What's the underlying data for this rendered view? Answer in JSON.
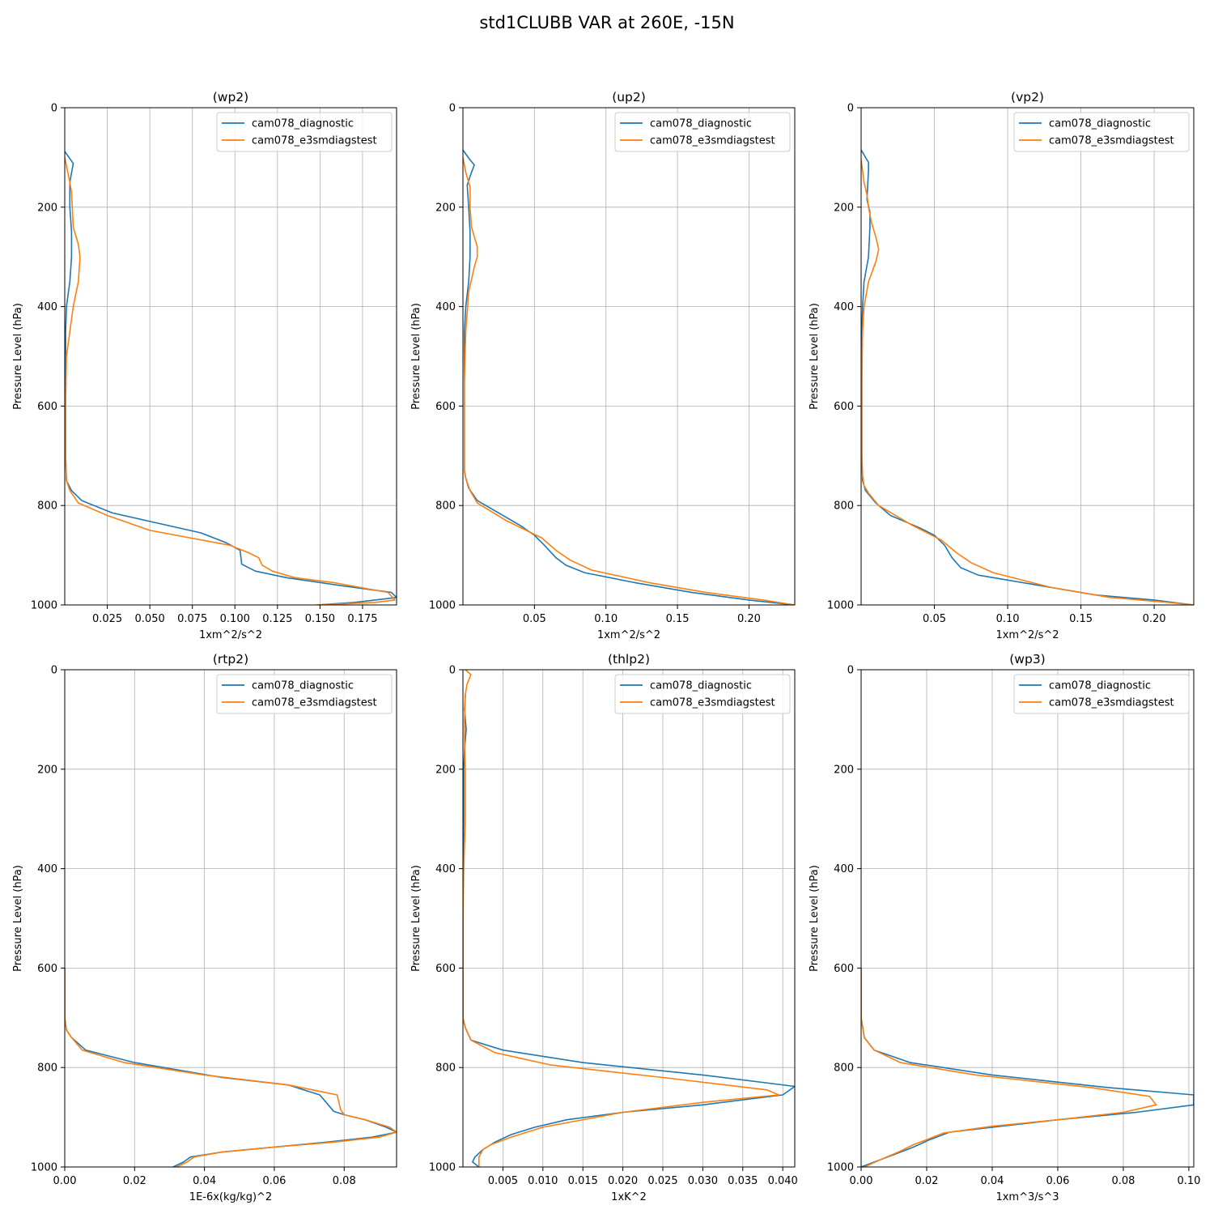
{
  "figure": {
    "title": "std1CLUBB VAR at 260E, -15N"
  },
  "colors": {
    "diagnostic": "#1f77b4",
    "e3smdiagstest": "#ff7f0e",
    "grid": "#b0b0b0"
  },
  "chart_data": [
    {
      "type": "line",
      "title": "(wp2)",
      "xlabel": "1xm^2/s^2",
      "ylabel": "Pressure Level (hPa)",
      "xlim": [
        0,
        0.195
      ],
      "ylim": [
        1000,
        0
      ],
      "xticks": [
        0.025,
        0.05,
        0.075,
        0.1,
        0.125,
        0.15,
        0.175
      ],
      "xtick_labels": [
        "0.025",
        "0.050",
        "0.075",
        "0.100",
        "0.125",
        "0.150",
        "0.175"
      ],
      "yticks": [
        0,
        200,
        400,
        600,
        800,
        1000
      ],
      "ytick_labels": [
        "0",
        "200",
        "400",
        "600",
        "800",
        "1000"
      ],
      "grid": true,
      "legend": "upper-right",
      "series": [
        {
          "name": "cam078_diagnostic",
          "color": "#1f77b4",
          "x": [
            0.0,
            0.005,
            0.003,
            0.003,
            0.004,
            0.004,
            0.003,
            0.001,
            0.0005,
            0.0005,
            0.0005,
            0.001,
            0.004,
            0.01,
            0.028,
            0.08,
            0.095,
            0.103,
            0.104,
            0.112,
            0.13,
            0.16,
            0.192,
            0.195,
            0.17,
            0.148
          ],
          "y": [
            88,
            112,
            150,
            200,
            250,
            300,
            350,
            400,
            450,
            600,
            700,
            750,
            770,
            790,
            815,
            855,
            875,
            890,
            918,
            932,
            945,
            960,
            975,
            985,
            995,
            1000
          ]
        },
        {
          "name": "cam078_e3smdiagstest",
          "color": "#ff7f0e",
          "x": [
            0.0,
            0.003,
            0.004,
            0.005,
            0.008,
            0.009,
            0.008,
            0.005,
            0.003,
            0.001,
            0.0005,
            0.0005,
            0.001,
            0.003,
            0.008,
            0.025,
            0.05,
            0.097,
            0.108,
            0.114,
            0.116,
            0.122,
            0.135,
            0.158,
            0.19,
            0.194,
            0.182,
            0.148
          ],
          "y": [
            100,
            150,
            170,
            240,
            275,
            300,
            350,
            400,
            450,
            500,
            600,
            700,
            750,
            770,
            795,
            820,
            850,
            880,
            895,
            905,
            920,
            932,
            945,
            955,
            975,
            990,
            995,
            1000
          ]
        }
      ]
    },
    {
      "type": "line",
      "title": "(up2)",
      "xlabel": "1xm^2/s^2",
      "ylabel": "Pressure Level (hPa)",
      "xlim": [
        0,
        0.232
      ],
      "ylim": [
        1000,
        0
      ],
      "xticks": [
        0.05,
        0.1,
        0.15,
        0.2
      ],
      "xtick_labels": [
        "0.05",
        "0.10",
        "0.15",
        "0.20"
      ],
      "yticks": [
        0,
        200,
        400,
        600,
        800,
        1000
      ],
      "ytick_labels": [
        "0",
        "200",
        "400",
        "600",
        "800",
        "1000"
      ],
      "grid": true,
      "legend": "upper-right",
      "series": [
        {
          "name": "cam078_diagnostic",
          "color": "#1f77b4",
          "x": [
            0.0,
            0.005,
            0.008,
            0.006,
            0.003,
            0.004,
            0.005,
            0.005,
            0.004,
            0.002,
            0.001,
            0.001,
            0.001,
            0.001,
            0.002,
            0.004,
            0.01,
            0.025,
            0.04,
            0.05,
            0.057,
            0.065,
            0.072,
            0.085,
            0.12,
            0.16,
            0.2,
            0.232
          ],
          "y": [
            85,
            105,
            115,
            130,
            155,
            200,
            250,
            300,
            350,
            400,
            450,
            600,
            700,
            730,
            745,
            765,
            790,
            815,
            840,
            860,
            880,
            905,
            920,
            935,
            955,
            975,
            990,
            1000
          ]
        },
        {
          "name": "cam078_e3smdiagstest",
          "color": "#ff7f0e",
          "x": [
            0.0,
            0.002,
            0.005,
            0.005,
            0.006,
            0.008,
            0.01,
            0.01,
            0.008,
            0.004,
            0.002,
            0.001,
            0.001,
            0.001,
            0.001,
            0.002,
            0.005,
            0.01,
            0.03,
            0.055,
            0.065,
            0.075,
            0.09,
            0.13,
            0.17,
            0.21,
            0.232
          ],
          "y": [
            100,
            130,
            160,
            200,
            240,
            260,
            280,
            300,
            320,
            370,
            450,
            550,
            650,
            700,
            730,
            745,
            770,
            795,
            830,
            865,
            890,
            910,
            930,
            955,
            975,
            990,
            1000
          ]
        }
      ]
    },
    {
      "type": "line",
      "title": "(vp2)",
      "xlabel": "1xm^2/s^2",
      "ylabel": "Pressure Level (hPa)",
      "xlim": [
        0,
        0.227
      ],
      "ylim": [
        1000,
        0
      ],
      "xticks": [
        0.05,
        0.1,
        0.15,
        0.2
      ],
      "xtick_labels": [
        "0.05",
        "0.10",
        "0.15",
        "0.20"
      ],
      "yticks": [
        0,
        200,
        400,
        600,
        800,
        1000
      ],
      "ytick_labels": [
        "0",
        "200",
        "400",
        "600",
        "800",
        "1000"
      ],
      "grid": true,
      "legend": "upper-right",
      "series": [
        {
          "name": "cam078_diagnostic",
          "color": "#1f77b4",
          "x": [
            0.0,
            0.005,
            0.005,
            0.004,
            0.006,
            0.006,
            0.005,
            0.002,
            0.001,
            0.0005,
            0.0005,
            0.0005,
            0.001,
            0.003,
            0.01,
            0.02,
            0.04,
            0.05,
            0.057,
            0.062,
            0.068,
            0.08,
            0.12,
            0.16,
            0.2,
            0.227
          ],
          "y": [
            85,
            110,
            125,
            185,
            210,
            240,
            300,
            350,
            400,
            450,
            600,
            700,
            750,
            770,
            795,
            820,
            845,
            860,
            880,
            905,
            925,
            940,
            960,
            980,
            990,
            1000
          ]
        },
        {
          "name": "cam078_e3smdiagstest",
          "color": "#ff7f0e",
          "x": [
            0.0,
            0.002,
            0.004,
            0.005,
            0.007,
            0.01,
            0.012,
            0.01,
            0.005,
            0.002,
            0.001,
            0.0005,
            0.0005,
            0.001,
            0.002,
            0.005,
            0.012,
            0.035,
            0.055,
            0.065,
            0.075,
            0.09,
            0.13,
            0.17,
            0.21,
            0.227
          ],
          "y": [
            105,
            150,
            175,
            200,
            230,
            260,
            285,
            310,
            350,
            400,
            450,
            550,
            700,
            740,
            760,
            775,
            800,
            840,
            870,
            895,
            915,
            935,
            965,
            985,
            995,
            1000
          ]
        }
      ]
    },
    {
      "type": "line",
      "title": "(rtp2)",
      "xlabel": "1E-6x(kg/kg)^2",
      "ylabel": "Pressure Level (hPa)",
      "xlim": [
        0,
        0.095
      ],
      "ylim": [
        1000,
        0
      ],
      "xticks": [
        0,
        0.02,
        0.04,
        0.06,
        0.08
      ],
      "xtick_labels": [
        "0.00",
        "0.02",
        "0.04",
        "0.06",
        "0.08"
      ],
      "yticks": [
        0,
        200,
        400,
        600,
        800,
        1000
      ],
      "ytick_labels": [
        "0",
        "200",
        "400",
        "600",
        "800",
        "1000"
      ],
      "grid": true,
      "legend": "upper-right",
      "series": [
        {
          "name": "cam078_diagnostic",
          "color": "#1f77b4",
          "x": [
            0.0,
            0.0,
            0.0005,
            0.002,
            0.006,
            0.02,
            0.045,
            0.064,
            0.073,
            0.077,
            0.08,
            0.086,
            0.092,
            0.095,
            0.088,
            0.075,
            0.06,
            0.045,
            0.036,
            0.034,
            0.031
          ],
          "y": [
            600,
            700,
            725,
            740,
            765,
            790,
            820,
            835,
            855,
            888,
            895,
            905,
            920,
            930,
            940,
            950,
            960,
            970,
            980,
            990,
            1000
          ]
        },
        {
          "name": "cam078_e3smdiagstest",
          "color": "#ff7f0e",
          "x": [
            0.0,
            0.0,
            0.0005,
            0.002,
            0.005,
            0.017,
            0.04,
            0.064,
            0.078,
            0.079,
            0.08,
            0.086,
            0.093,
            0.095,
            0.09,
            0.077,
            0.06,
            0.045,
            0.037,
            0.035,
            0.032
          ],
          "y": [
            600,
            700,
            725,
            740,
            765,
            790,
            815,
            835,
            855,
            885,
            895,
            905,
            920,
            930,
            940,
            950,
            960,
            970,
            980,
            990,
            1000
          ]
        }
      ]
    },
    {
      "type": "line",
      "title": "(thlp2)",
      "xlabel": "1xK^2",
      "ylabel": "Pressure Level (hPa)",
      "xlim": [
        0,
        0.0415
      ],
      "ylim": [
        1000,
        0
      ],
      "xticks": [
        0.005,
        0.01,
        0.015,
        0.02,
        0.025,
        0.03,
        0.035,
        0.04
      ],
      "xtick_labels": [
        "0.005",
        "0.010",
        "0.015",
        "0.020",
        "0.025",
        "0.030",
        "0.035",
        "0.040"
      ],
      "yticks": [
        0,
        200,
        400,
        600,
        800,
        1000
      ],
      "ytick_labels": [
        "0",
        "200",
        "400",
        "600",
        "800",
        "1000"
      ],
      "grid": true,
      "legend": "upper-right",
      "series": [
        {
          "name": "cam078_diagnostic",
          "color": "#1f77b4",
          "x": [
            0.0003,
            0.0002,
            0.0003,
            0.0004,
            0.0003,
            0.0002,
            0.0001,
            0.0001,
            0.0,
            0.0,
            0.0003,
            0.001,
            0.005,
            0.015,
            0.03,
            0.0415,
            0.04,
            0.03,
            0.02,
            0.013,
            0.009,
            0.006,
            0.004,
            0.0025,
            0.0015,
            0.0012,
            0.002
          ],
          "y": [
            50,
            80,
            100,
            120,
            140,
            160,
            200,
            300,
            400,
            700,
            720,
            745,
            765,
            790,
            815,
            838,
            855,
            875,
            890,
            905,
            920,
            935,
            950,
            965,
            980,
            990,
            1000
          ]
        },
        {
          "name": "cam078_e3smdiagstest",
          "color": "#ff7f0e",
          "x": [
            0.0003,
            0.001,
            0.0005,
            0.0003,
            0.0002,
            0.0002,
            0.0003,
            0.0003,
            0.0001,
            0.0,
            0.0,
            0.0003,
            0.001,
            0.004,
            0.011,
            0.025,
            0.038,
            0.0395,
            0.03,
            0.02,
            0.01,
            0.006,
            0.0035,
            0.0025,
            0.002,
            0.002,
            0.002
          ],
          "y": [
            0,
            10,
            30,
            50,
            100,
            150,
            200,
            300,
            400,
            500,
            700,
            720,
            745,
            770,
            795,
            820,
            845,
            855,
            870,
            890,
            920,
            940,
            955,
            965,
            980,
            990,
            1000
          ]
        }
      ]
    },
    {
      "type": "line",
      "title": "(wp3)",
      "xlabel": "1xm^3/s^3",
      "ylabel": "Pressure Level (hPa)",
      "xlim": [
        0,
        0.1015
      ],
      "ylim": [
        1000,
        0
      ],
      "xticks": [
        0,
        0.02,
        0.04,
        0.06,
        0.08,
        0.1
      ],
      "xtick_labels": [
        "0.00",
        "0.02",
        "0.04",
        "0.06",
        "0.08",
        "0.10"
      ],
      "yticks": [
        0,
        200,
        400,
        600,
        800,
        1000
      ],
      "ytick_labels": [
        "0",
        "200",
        "400",
        "600",
        "800",
        "1000"
      ],
      "grid": true,
      "legend": "upper-right",
      "series": [
        {
          "name": "cam078_diagnostic",
          "color": "#1f77b4",
          "x": [
            0.0,
            0.0,
            0.0005,
            0.001,
            0.004,
            0.015,
            0.04,
            0.075,
            0.1015,
            0.1015,
            0.084,
            0.06,
            0.04,
            0.027,
            0.021,
            0.016,
            0.01,
            0.004,
            0.0
          ],
          "y": [
            600,
            700,
            720,
            740,
            765,
            790,
            815,
            840,
            855,
            875,
            890,
            905,
            920,
            930,
            945,
            960,
            975,
            990,
            1000
          ]
        },
        {
          "name": "cam078_e3smdiagstest",
          "color": "#ff7f0e",
          "x": [
            0.0,
            0.0,
            0.0005,
            0.001,
            0.004,
            0.012,
            0.035,
            0.07,
            0.088,
            0.09,
            0.08,
            0.06,
            0.04,
            0.025,
            0.02,
            0.016,
            0.012,
            0.006,
            0.001
          ],
          "y": [
            600,
            700,
            720,
            740,
            765,
            790,
            815,
            840,
            858,
            875,
            890,
            905,
            918,
            932,
            945,
            955,
            968,
            985,
            1000
          ]
        }
      ]
    }
  ]
}
